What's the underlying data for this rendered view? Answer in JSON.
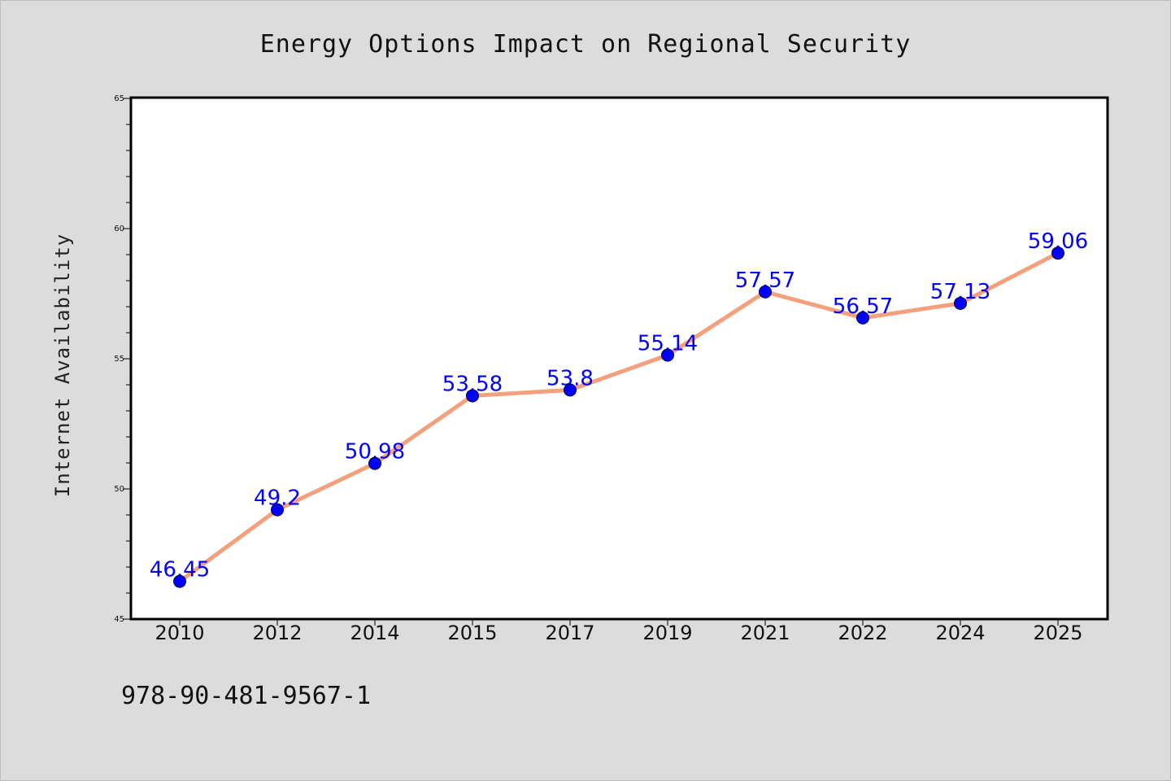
{
  "chart_data": {
    "type": "line",
    "title": "Energy Options Impact on Regional Security",
    "xlabel": "",
    "ylabel": "Internet Availability",
    "categories": [
      "2010",
      "2012",
      "2014",
      "2015",
      "2017",
      "2019",
      "2021",
      "2022",
      "2024",
      "2025"
    ],
    "values": [
      46.45,
      49.2,
      50.98,
      53.58,
      53.8,
      55.14,
      57.57,
      56.57,
      57.13,
      59.06
    ],
    "data_labels": [
      "46.45",
      "49.2",
      "50.98",
      "53.58",
      "53.8",
      "55.14",
      "57.57",
      "56.57",
      "57.13",
      "59.06"
    ],
    "ylim": [
      45,
      65
    ],
    "yticks": [
      45,
      50,
      55,
      60,
      65
    ],
    "grid": false,
    "legend": "none",
    "colors": {
      "line": "#f4a07c",
      "marker": "#0000ff",
      "data_label": "#0000ff",
      "plot_bg": "#ffffff",
      "figure_bg": "#dcdcdc"
    }
  },
  "footer": {
    "isbn": "978-90-481-9567-1"
  }
}
